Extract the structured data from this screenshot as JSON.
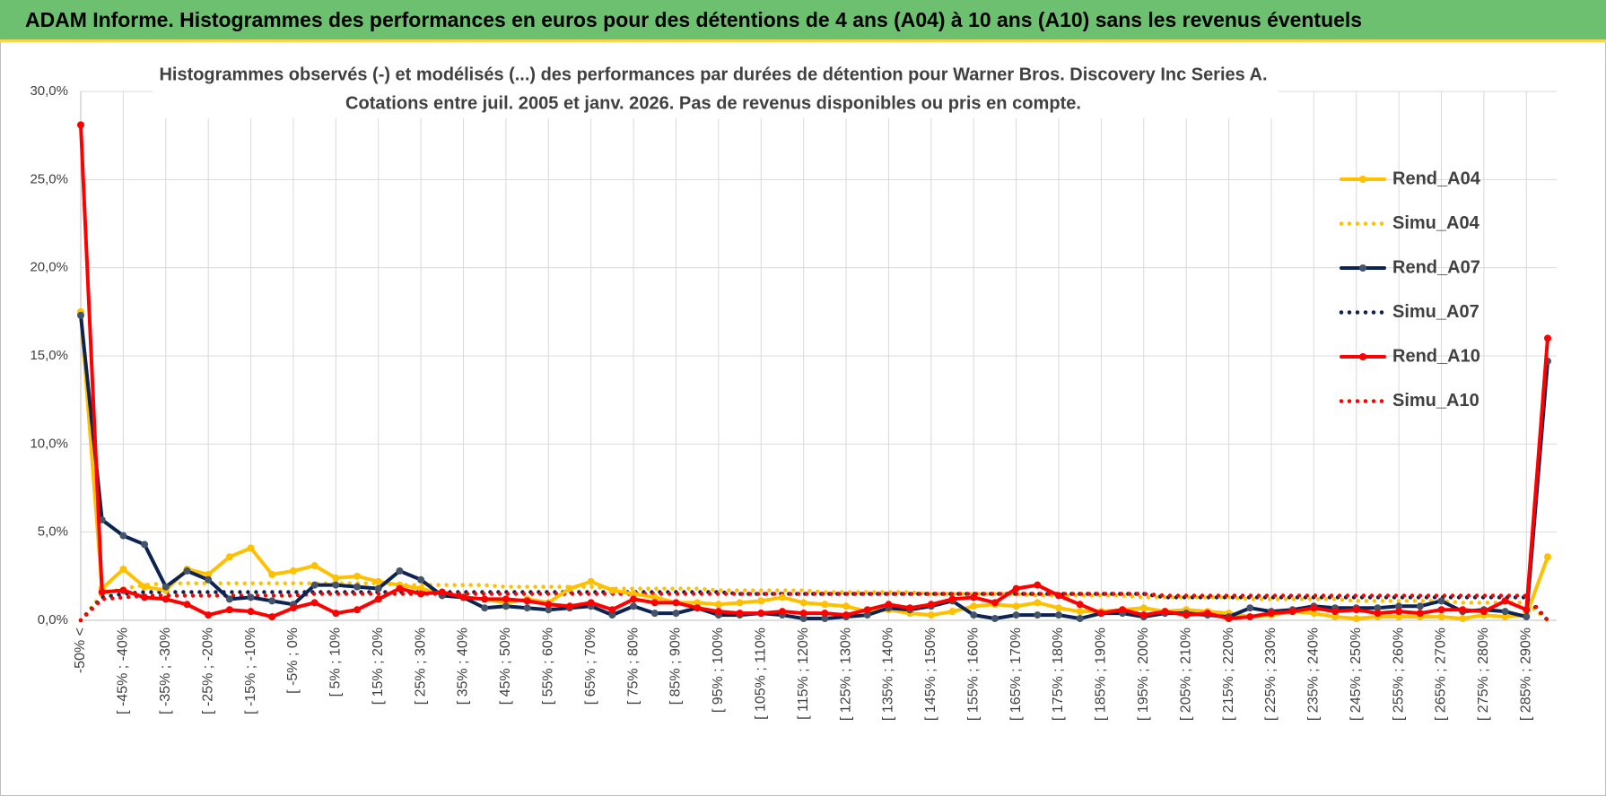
{
  "header": {
    "title": "ADAM Informe. Histogrammes des performances en euros pour des détentions de 4 ans (A04) à 10 ans (A10) sans les revenus éventuels"
  },
  "chart_data": {
    "type": "line",
    "title": [
      "Histogrammes observés (-) et modélisés (...) des performances par durées de détention pour Warner Bros. Discovery Inc Series A.",
      "Cotations entre juil. 2005 et janv. 2026. Pas de revenus disponibles ou pris en compte."
    ],
    "categories": [
      "-50% <",
      null,
      "[ -45% ; -40%",
      null,
      "[ -35% ; -30%",
      null,
      "[ -25% ; -20%",
      null,
      "[ -15% ; -10%",
      null,
      "[ -5% ; 0%",
      null,
      "[ 5% ; 10%",
      null,
      "[ 15% ; 20%",
      null,
      "[ 25% ; 30%",
      null,
      "[ 35% ; 40%",
      null,
      "[ 45% ; 50%",
      null,
      "[ 55% ; 60%",
      null,
      "[ 65% ; 70%",
      null,
      "[ 75% ; 80%",
      null,
      "[ 85% ; 90%",
      null,
      "[ 95% ; 100%",
      null,
      "[ 105% ; 110%",
      null,
      "[ 115% ; 120%",
      null,
      "[ 125% ; 130%",
      null,
      "[ 135% ; 140%",
      null,
      "[ 145% ; 150%",
      null,
      "[ 155% ; 160%",
      null,
      "[ 165% ; 170%",
      null,
      "[ 175% ; 180%",
      null,
      "[ 185% ; 190%",
      null,
      "[ 195% ; 200%",
      null,
      "[ 205% ; 210%",
      null,
      "[ 215% ; 220%",
      null,
      "[ 225% ; 230%",
      null,
      "[ 235% ; 240%",
      null,
      "[ 245% ; 250%",
      null,
      "[ 255% ; 260%",
      null,
      "[ 265% ; 270%",
      null,
      "[ 275% ; 280%",
      null,
      "[ 285% ; 290%",
      null
    ],
    "series": [
      {
        "name": "Rend_A04",
        "color": "#ffc000",
        "style": "solid",
        "marker": true,
        "values": [
          17.5,
          1.8,
          2.9,
          1.9,
          1.7,
          2.9,
          2.6,
          3.6,
          4.1,
          2.6,
          2.8,
          3.1,
          2.4,
          2.5,
          2.2,
          2.0,
          1.8,
          1.5,
          1.3,
          1.2,
          1.0,
          1.2,
          1.0,
          1.8,
          2.2,
          1.7,
          1.5,
          1.3,
          1.0,
          1.0,
          0.9,
          1.0,
          1.1,
          1.3,
          1.0,
          0.9,
          0.8,
          0.5,
          0.6,
          0.4,
          0.3,
          0.5,
          0.8,
          0.9,
          0.8,
          1.0,
          0.7,
          0.5,
          0.5,
          0.6,
          0.7,
          0.5,
          0.6,
          0.5,
          0.4,
          0.2,
          0.3,
          0.5,
          0.4,
          0.2,
          0.1,
          0.2,
          0.2,
          0.2,
          0.2,
          0.1,
          0.3,
          0.2,
          0.3,
          3.6
        ]
      },
      {
        "name": "Simu_A04",
        "color": "#ffc000",
        "style": "dotted",
        "marker": false,
        "values": [
          0,
          1.5,
          1.8,
          2.0,
          2.1,
          2.1,
          2.1,
          2.1,
          2.1,
          2.1,
          2.1,
          2.1,
          2.1,
          2.1,
          2.1,
          2.0,
          2.0,
          2.0,
          2.0,
          2.0,
          1.9,
          1.9,
          1.9,
          1.9,
          1.9,
          1.8,
          1.8,
          1.8,
          1.8,
          1.8,
          1.7,
          1.7,
          1.7,
          1.7,
          1.7,
          1.6,
          1.6,
          1.6,
          1.6,
          1.6,
          1.5,
          1.5,
          1.5,
          1.5,
          1.5,
          1.4,
          1.4,
          1.4,
          1.4,
          1.4,
          1.3,
          1.3,
          1.3,
          1.3,
          1.3,
          1.2,
          1.2,
          1.2,
          1.2,
          1.2,
          1.1,
          1.1,
          1.1,
          1.1,
          1.1,
          1.0,
          1.0,
          1.0,
          1.0,
          0
        ]
      },
      {
        "name": "Rend_A07",
        "color": "#0d2352",
        "style": "solid",
        "marker": true,
        "values": [
          17.3,
          5.7,
          4.8,
          4.3,
          1.9,
          2.8,
          2.3,
          1.2,
          1.3,
          1.1,
          0.9,
          2.0,
          2.0,
          1.9,
          1.8,
          2.8,
          2.3,
          1.4,
          1.3,
          0.7,
          0.8,
          0.7,
          0.6,
          0.7,
          0.8,
          0.3,
          0.8,
          0.4,
          0.4,
          0.7,
          0.3,
          0.3,
          0.4,
          0.3,
          0.1,
          0.1,
          0.2,
          0.3,
          0.7,
          0.6,
          0.8,
          1.1,
          0.3,
          0.1,
          0.3,
          0.3,
          0.3,
          0.1,
          0.4,
          0.4,
          0.2,
          0.4,
          0.4,
          0.3,
          0.2,
          0.7,
          0.5,
          0.6,
          0.8,
          0.7,
          0.7,
          0.7,
          0.8,
          0.8,
          1.1,
          0.5,
          0.6,
          0.5,
          0.2,
          14.7
        ]
      },
      {
        "name": "Simu_A07",
        "color": "#0d2352",
        "style": "dotted",
        "marker": false,
        "values": [
          0,
          1.3,
          1.5,
          1.6,
          1.6,
          1.6,
          1.6,
          1.6,
          1.6,
          1.6,
          1.6,
          1.6,
          1.6,
          1.6,
          1.6,
          1.6,
          1.6,
          1.6,
          1.6,
          1.6,
          1.6,
          1.6,
          1.6,
          1.6,
          1.6,
          1.6,
          1.6,
          1.6,
          1.6,
          1.6,
          1.6,
          1.5,
          1.5,
          1.5,
          1.5,
          1.5,
          1.5,
          1.5,
          1.5,
          1.5,
          1.5,
          1.5,
          1.5,
          1.5,
          1.5,
          1.5,
          1.5,
          1.5,
          1.5,
          1.5,
          1.5,
          1.3,
          1.3,
          1.3,
          1.3,
          1.3,
          1.3,
          1.3,
          1.3,
          1.3,
          1.3,
          1.3,
          1.3,
          1.3,
          1.3,
          1.3,
          1.3,
          1.3,
          1.3,
          0
        ]
      },
      {
        "name": "Rend_A10",
        "color": "#ff0000",
        "style": "solid",
        "marker": true,
        "values": [
          28.1,
          1.6,
          1.7,
          1.3,
          1.2,
          0.9,
          0.3,
          0.6,
          0.5,
          0.2,
          0.7,
          1.0,
          0.4,
          0.6,
          1.2,
          1.8,
          1.5,
          1.6,
          1.3,
          1.2,
          1.2,
          1.1,
          0.9,
          0.8,
          1.0,
          0.6,
          1.2,
          1.0,
          1.0,
          0.7,
          0.5,
          0.4,
          0.4,
          0.5,
          0.4,
          0.4,
          0.3,
          0.6,
          0.9,
          0.7,
          0.9,
          1.2,
          1.3,
          1.0,
          1.8,
          2.0,
          1.4,
          0.9,
          0.4,
          0.6,
          0.3,
          0.5,
          0.3,
          0.4,
          0.1,
          0.2,
          0.4,
          0.5,
          0.7,
          0.5,
          0.6,
          0.4,
          0.5,
          0.4,
          0.6,
          0.6,
          0.5,
          1.1,
          0.6,
          16.0
        ]
      },
      {
        "name": "Simu_A10",
        "color": "#ff0000",
        "style": "dotted",
        "marker": false,
        "values": [
          0,
          1.2,
          1.3,
          1.4,
          1.4,
          1.4,
          1.4,
          1.4,
          1.4,
          1.4,
          1.4,
          1.5,
          1.5,
          1.5,
          1.5,
          1.5,
          1.5,
          1.5,
          1.5,
          1.5,
          1.5,
          1.5,
          1.5,
          1.5,
          1.5,
          1.5,
          1.5,
          1.5,
          1.5,
          1.5,
          1.5,
          1.5,
          1.5,
          1.5,
          1.5,
          1.5,
          1.5,
          1.5,
          1.5,
          1.5,
          1.5,
          1.5,
          1.5,
          1.5,
          1.5,
          1.5,
          1.5,
          1.5,
          1.5,
          1.5,
          1.5,
          1.4,
          1.4,
          1.4,
          1.4,
          1.4,
          1.4,
          1.4,
          1.4,
          1.4,
          1.4,
          1.4,
          1.4,
          1.4,
          1.4,
          1.4,
          1.4,
          1.4,
          1.4,
          0
        ]
      }
    ],
    "ylim": [
      0,
      30
    ],
    "yticks": [
      {
        "value": 0,
        "label": "0,0%"
      },
      {
        "value": 5,
        "label": "5,0%"
      },
      {
        "value": 10,
        "label": "10,0%"
      },
      {
        "value": 15,
        "label": "15,0%"
      },
      {
        "value": 20,
        "label": "20,0%"
      },
      {
        "value": 25,
        "label": "25,0%"
      },
      {
        "value": 30,
        "label": "30,0%"
      }
    ],
    "grid": true,
    "legend": "right"
  }
}
